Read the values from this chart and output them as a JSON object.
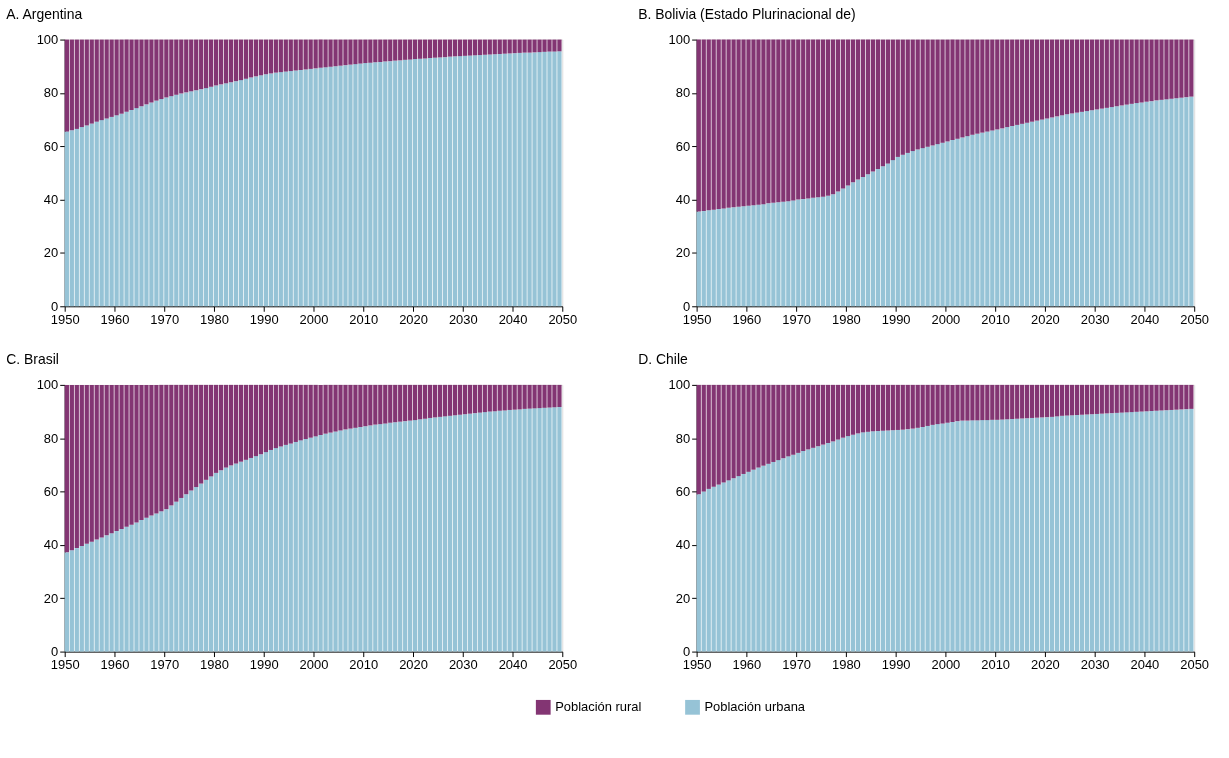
{
  "chart_data": [
    {
      "type": "bar",
      "stacked": true,
      "title": "A. Argentina",
      "legend": "bottom",
      "grid": false,
      "x": [
        1950,
        1951,
        1952,
        1953,
        1954,
        1955,
        1956,
        1957,
        1958,
        1959,
        1960,
        1961,
        1962,
        1963,
        1964,
        1965,
        1966,
        1967,
        1968,
        1969,
        1970,
        1971,
        1972,
        1973,
        1974,
        1975,
        1976,
        1977,
        1978,
        1979,
        1980,
        1981,
        1982,
        1983,
        1984,
        1985,
        1986,
        1987,
        1988,
        1989,
        1990,
        1991,
        1992,
        1993,
        1994,
        1995,
        1996,
        1997,
        1998,
        1999,
        2000,
        2001,
        2002,
        2003,
        2004,
        2005,
        2006,
        2007,
        2008,
        2009,
        2010,
        2011,
        2012,
        2013,
        2014,
        2015,
        2016,
        2017,
        2018,
        2019,
        2020,
        2021,
        2022,
        2023,
        2024,
        2025,
        2026,
        2027,
        2028,
        2029,
        2030,
        2031,
        2032,
        2033,
        2034,
        2035,
        2036,
        2037,
        2038,
        2039,
        2040,
        2041,
        2042,
        2043,
        2044,
        2045,
        2046,
        2047,
        2048,
        2049
      ],
      "xlim": [
        1950,
        2050
      ],
      "xticks": [
        1950,
        1960,
        1970,
        1980,
        1990,
        2000,
        2010,
        2020,
        2030,
        2040,
        2050
      ],
      "ylim": [
        0,
        100
      ],
      "yticks": [
        0,
        20,
        40,
        60,
        80,
        100
      ],
      "series": [
        {
          "name": "Población urbana",
          "color": "#96c3d6",
          "values": [
            65.5,
            66,
            66.5,
            67.2,
            67.8,
            68.5,
            69.2,
            69.8,
            70.4,
            71,
            71.6,
            72.2,
            72.9,
            73.6,
            74.3,
            75,
            75.7,
            76.4,
            77.1,
            77.7,
            78.3,
            78.8,
            79.3,
            79.8,
            80.2,
            80.6,
            81,
            81.4,
            81.8,
            82.3,
            82.8,
            83.2,
            83.6,
            84,
            84.4,
            84.8,
            85.3,
            85.8,
            86.2,
            86.6,
            87,
            87.3,
            87.6,
            87.8,
            88,
            88.2,
            88.4,
            88.6,
            88.8,
            89,
            89.2,
            89.4,
            89.6,
            89.8,
            90,
            90.2,
            90.4,
            90.6,
            90.8,
            91,
            91.2,
            91.3,
            91.5,
            91.6,
            91.8,
            91.9,
            92.1,
            92.2,
            92.4,
            92.5,
            92.7,
            92.8,
            92.9,
            93.1,
            93.2,
            93.3,
            93.4,
            93.6,
            93.7,
            93.8,
            93.9,
            94,
            94.1,
            94.2,
            94.3,
            94.4,
            94.5,
            94.6,
            94.7,
            94.8,
            94.9,
            95,
            95.1,
            95.1,
            95.2,
            95.3,
            95.4,
            95.5,
            95.5,
            95.6
          ]
        },
        {
          "name": "Población rural",
          "color": "#833573",
          "values": [
            34.5,
            34,
            33.5,
            32.8,
            32.2,
            31.5,
            30.8,
            30.2,
            29.6,
            29,
            28.4,
            27.8,
            27.1,
            26.4,
            25.7,
            25,
            24.3,
            23.6,
            22.9,
            22.3,
            21.7,
            21.2,
            20.7,
            20.2,
            19.8,
            19.4,
            19,
            18.6,
            18.2,
            17.7,
            17.2,
            16.8,
            16.4,
            16,
            15.6,
            15.2,
            14.7,
            14.2,
            13.8,
            13.4,
            13,
            12.7,
            12.4,
            12.2,
            12,
            11.8,
            11.6,
            11.4,
            11.2,
            11,
            10.8,
            10.6,
            10.4,
            10.2,
            10,
            9.8,
            9.6,
            9.4,
            9.2,
            9,
            8.8,
            8.7,
            8.5,
            8.4,
            8.2,
            8.1,
            7.9,
            7.8,
            7.6,
            7.5,
            7.3,
            7.2,
            7.1,
            6.9,
            6.8,
            6.7,
            6.6,
            6.4,
            6.3,
            6.2,
            6.1,
            6,
            5.9,
            5.8,
            5.7,
            5.6,
            5.5,
            5.4,
            5.3,
            5.2,
            5.1,
            5,
            4.9,
            4.9,
            4.8,
            4.7,
            4.6,
            4.5,
            4.5,
            4.4
          ]
        }
      ]
    },
    {
      "type": "bar",
      "stacked": true,
      "title": "B. Bolivia (Estado Plurinacional de)",
      "grid": false,
      "x": [
        1950,
        1951,
        1952,
        1953,
        1954,
        1955,
        1956,
        1957,
        1958,
        1959,
        1960,
        1961,
        1962,
        1963,
        1964,
        1965,
        1966,
        1967,
        1968,
        1969,
        1970,
        1971,
        1972,
        1973,
        1974,
        1975,
        1976,
        1977,
        1978,
        1979,
        1980,
        1981,
        1982,
        1983,
        1984,
        1985,
        1986,
        1987,
        1988,
        1989,
        1990,
        1991,
        1992,
        1993,
        1994,
        1995,
        1996,
        1997,
        1998,
        1999,
        2000,
        2001,
        2002,
        2003,
        2004,
        2005,
        2006,
        2007,
        2008,
        2009,
        2010,
        2011,
        2012,
        2013,
        2014,
        2015,
        2016,
        2017,
        2018,
        2019,
        2020,
        2021,
        2022,
        2023,
        2024,
        2025,
        2026,
        2027,
        2028,
        2029,
        2030,
        2031,
        2032,
        2033,
        2034,
        2035,
        2036,
        2037,
        2038,
        2039,
        2040,
        2041,
        2042,
        2043,
        2044,
        2045,
        2046,
        2047,
        2048,
        2049
      ],
      "xlim": [
        1950,
        2050
      ],
      "xticks": [
        1950,
        1960,
        1970,
        1980,
        1990,
        2000,
        2010,
        2020,
        2030,
        2040,
        2050
      ],
      "ylim": [
        0,
        100
      ],
      "yticks": [
        0,
        20,
        40,
        60,
        80,
        100
      ],
      "series": [
        {
          "color": "#96c3d6",
          "values": [
            35.5,
            35.7,
            36,
            36.2,
            36.5,
            36.7,
            36.9,
            37.1,
            37.3,
            37.5,
            37.7,
            37.9,
            38.1,
            38.3,
            38.6,
            38.8,
            39,
            39.2,
            39.4,
            39.7,
            40,
            40.2,
            40.4,
            40.7,
            40.9,
            41.1,
            41.4,
            42,
            43,
            44.2,
            45.3,
            46.5,
            47.5,
            48.5,
            49.5,
            50.5,
            51.5,
            52.5,
            53.5,
            54.8,
            56,
            56.8,
            57.5,
            58.2,
            58.8,
            59.3,
            59.8,
            60.3,
            60.8,
            61.3,
            61.8,
            62.3,
            62.8,
            63.3,
            63.8,
            64.3,
            64.7,
            65.1,
            65.5,
            65.9,
            66.3,
            66.7,
            67.2,
            67.6,
            68,
            68.4,
            68.8,
            69.2,
            69.6,
            70,
            70.4,
            70.8,
            71.2,
            71.6,
            72,
            72.3,
            72.6,
            72.9,
            73.2,
            73.5,
            73.8,
            74.1,
            74.4,
            74.7,
            75,
            75.3,
            75.6,
            75.9,
            76.2,
            76.4,
            76.7,
            76.9,
            77.2,
            77.4,
            77.6,
            77.8,
            78,
            78.2,
            78.4,
            78.6
          ]
        },
        {
          "color": "#833573",
          "values": [
            64.5,
            64.3,
            64,
            63.8,
            63.5,
            63.3,
            63.1,
            62.9,
            62.7,
            62.5,
            62.3,
            62.1,
            61.9,
            61.7,
            61.4,
            61.2,
            61,
            60.8,
            60.6,
            60.3,
            60,
            59.8,
            59.6,
            59.3,
            59.1,
            58.9,
            58.6,
            58,
            57,
            55.8,
            54.7,
            53.5,
            52.5,
            51.5,
            50.5,
            49.5,
            48.5,
            47.5,
            46.5,
            45.2,
            44,
            43.2,
            42.5,
            41.8,
            41.2,
            40.7,
            40.2,
            39.7,
            39.2,
            38.7,
            38.2,
            37.7,
            37.2,
            36.7,
            36.2,
            35.7,
            35.3,
            34.9,
            34.5,
            34.1,
            33.7,
            33.3,
            32.8,
            32.4,
            32,
            31.6,
            31.2,
            30.8,
            30.4,
            30,
            29.6,
            29.2,
            28.8,
            28.4,
            28,
            27.7,
            27.4,
            27.1,
            26.8,
            26.5,
            26.2,
            25.9,
            25.6,
            25.3,
            25,
            24.7,
            24.4,
            24.1,
            23.8,
            23.6,
            23.3,
            23.1,
            22.8,
            22.6,
            22.4,
            22.2,
            22,
            21.8,
            21.6,
            21.4
          ]
        }
      ]
    },
    {
      "type": "bar",
      "stacked": true,
      "title": "C. Brasil",
      "grid": false,
      "x": [
        1950,
        1951,
        1952,
        1953,
        1954,
        1955,
        1956,
        1957,
        1958,
        1959,
        1960,
        1961,
        1962,
        1963,
        1964,
        1965,
        1966,
        1967,
        1968,
        1969,
        1970,
        1971,
        1972,
        1973,
        1974,
        1975,
        1976,
        1977,
        1978,
        1979,
        1980,
        1981,
        1982,
        1983,
        1984,
        1985,
        1986,
        1987,
        1988,
        1989,
        1990,
        1991,
        1992,
        1993,
        1994,
        1995,
        1996,
        1997,
        1998,
        1999,
        2000,
        2001,
        2002,
        2003,
        2004,
        2005,
        2006,
        2007,
        2008,
        2009,
        2010,
        2011,
        2012,
        2013,
        2014,
        2015,
        2016,
        2017,
        2018,
        2019,
        2020,
        2021,
        2022,
        2023,
        2024,
        2025,
        2026,
        2027,
        2028,
        2029,
        2030,
        2031,
        2032,
        2033,
        2034,
        2035,
        2036,
        2037,
        2038,
        2039,
        2040,
        2041,
        2042,
        2043,
        2044,
        2045,
        2046,
        2047,
        2048,
        2049
      ],
      "xlim": [
        1950,
        2050
      ],
      "xticks": [
        1950,
        1960,
        1970,
        1980,
        1990,
        2000,
        2010,
        2020,
        2030,
        2040,
        2050
      ],
      "ylim": [
        0,
        100
      ],
      "yticks": [
        0,
        20,
        40,
        60,
        80,
        100
      ],
      "series": [
        {
          "color": "#96c3d6",
          "values": [
            37.2,
            38,
            38.8,
            39.6,
            40.4,
            41.2,
            42,
            42.8,
            43.6,
            44.4,
            45.2,
            46,
            46.8,
            47.6,
            48.4,
            49.3,
            50.2,
            51,
            51.8,
            52.6,
            53.4,
            54.8,
            56.2,
            57.6,
            59,
            60.4,
            61.7,
            63,
            64.4,
            65.7,
            67,
            68,
            69,
            69.8,
            70.5,
            71.2,
            71.9,
            72.6,
            73.3,
            74,
            74.8,
            75.6,
            76.3,
            76.9,
            77.5,
            78,
            78.6,
            79.2,
            79.7,
            80.2,
            80.7,
            81.2,
            81.7,
            82.1,
            82.5,
            82.9,
            83.3,
            83.6,
            83.9,
            84.2,
            84.5,
            84.8,
            85.1,
            85.3,
            85.5,
            85.8,
            86,
            86.2,
            86.4,
            86.6,
            86.8,
            87.1,
            87.3,
            87.6,
            87.8,
            88,
            88.2,
            88.4,
            88.6,
            88.8,
            89,
            89.2,
            89.4,
            89.6,
            89.8,
            90,
            90.1,
            90.3,
            90.4,
            90.6,
            90.7,
            90.8,
            91,
            91.1,
            91.2,
            91.3,
            91.4,
            91.5,
            91.6,
            91.7
          ]
        },
        {
          "color": "#833573",
          "values": [
            62.8,
            62,
            61.2,
            60.4,
            59.6,
            58.8,
            58,
            57.2,
            56.4,
            55.6,
            54.8,
            54,
            53.2,
            52.4,
            51.6,
            50.7,
            49.8,
            49,
            48.2,
            47.4,
            46.6,
            45.2,
            43.8,
            42.4,
            41,
            39.6,
            38.3,
            37,
            35.6,
            34.3,
            33,
            32,
            31,
            30.2,
            29.5,
            28.8,
            28.1,
            27.4,
            26.7,
            26,
            25.2,
            24.4,
            23.7,
            23.1,
            22.5,
            22,
            21.4,
            20.8,
            20.3,
            19.8,
            19.3,
            18.8,
            18.3,
            17.9,
            17.5,
            17.1,
            16.7,
            16.4,
            16.1,
            15.8,
            15.5,
            15.2,
            14.9,
            14.7,
            14.5,
            14.2,
            14,
            13.8,
            13.6,
            13.4,
            13.2,
            12.9,
            12.7,
            12.4,
            12.2,
            12,
            11.8,
            11.6,
            11.4,
            11.2,
            11,
            10.8,
            10.6,
            10.4,
            10.2,
            10,
            9.9,
            9.7,
            9.6,
            9.4,
            9.3,
            9.2,
            9,
            8.9,
            8.8,
            8.7,
            8.6,
            8.5,
            8.4,
            8.3
          ]
        }
      ]
    },
    {
      "type": "bar",
      "stacked": true,
      "title": "D. Chile",
      "grid": false,
      "x": [
        1950,
        1951,
        1952,
        1953,
        1954,
        1955,
        1956,
        1957,
        1958,
        1959,
        1960,
        1961,
        1962,
        1963,
        1964,
        1965,
        1966,
        1967,
        1968,
        1969,
        1970,
        1971,
        1972,
        1973,
        1974,
        1975,
        1976,
        1977,
        1978,
        1979,
        1980,
        1981,
        1982,
        1983,
        1984,
        1985,
        1986,
        1987,
        1988,
        1989,
        1990,
        1991,
        1992,
        1993,
        1994,
        1995,
        1996,
        1997,
        1998,
        1999,
        2000,
        2001,
        2002,
        2003,
        2004,
        2005,
        2006,
        2007,
        2008,
        2009,
        2010,
        2011,
        2012,
        2013,
        2014,
        2015,
        2016,
        2017,
        2018,
        2019,
        2020,
        2021,
        2022,
        2023,
        2024,
        2025,
        2026,
        2027,
        2028,
        2029,
        2030,
        2031,
        2032,
        2033,
        2034,
        2035,
        2036,
        2037,
        2038,
        2039,
        2040,
        2041,
        2042,
        2043,
        2044,
        2045,
        2046,
        2047,
        2048,
        2049
      ],
      "xlim": [
        1950,
        2050
      ],
      "xticks": [
        1950,
        1960,
        1970,
        1980,
        1990,
        2000,
        2010,
        2020,
        2030,
        2040,
        2050
      ],
      "ylim": [
        0,
        100
      ],
      "yticks": [
        0,
        20,
        40,
        60,
        80,
        100
      ],
      "series": [
        {
          "color": "#96c3d6",
          "values": [
            59,
            60,
            61,
            61.8,
            62.6,
            63.4,
            64.2,
            65,
            65.8,
            66.6,
            67.4,
            68.2,
            69,
            69.7,
            70.4,
            71.1,
            71.8,
            72.5,
            73.2,
            73.8,
            74.5,
            75.2,
            75.8,
            76.4,
            77,
            77.6,
            78.2,
            78.8,
            79.5,
            80.2,
            80.8,
            81.3,
            81.8,
            82.2,
            82.4,
            82.6,
            82.7,
            82.8,
            82.9,
            83,
            83.1,
            83.2,
            83.4,
            83.6,
            83.9,
            84.2,
            84.6,
            85,
            85.3,
            85.5,
            85.8,
            86.1,
            86.4,
            86.6,
            86.6,
            86.7,
            86.7,
            86.8,
            86.8,
            86.9,
            86.9,
            87,
            87.1,
            87.2,
            87.3,
            87.4,
            87.5,
            87.6,
            87.7,
            87.8,
            87.9,
            88,
            88.2,
            88.4,
            88.5,
            88.6,
            88.7,
            88.8,
            88.9,
            89,
            89.1,
            89.2,
            89.3,
            89.4,
            89.5,
            89.6,
            89.7,
            89.8,
            89.9,
            90,
            90.1,
            90.2,
            90.3,
            90.4,
            90.5,
            90.6,
            90.7,
            90.8,
            90.9,
            91
          ]
        },
        {
          "color": "#833573",
          "values": [
            41,
            40,
            39,
            38.2,
            37.4,
            36.6,
            35.8,
            35,
            34.2,
            33.4,
            32.6,
            31.8,
            31,
            30.3,
            29.6,
            28.9,
            28.2,
            27.5,
            26.8,
            26.2,
            25.5,
            24.8,
            24.2,
            23.6,
            23,
            22.4,
            21.8,
            21.2,
            20.5,
            19.8,
            19.2,
            18.7,
            18.2,
            17.8,
            17.6,
            17.4,
            17.3,
            17.2,
            17.1,
            17,
            16.9,
            16.8,
            16.6,
            16.4,
            16.1,
            15.8,
            15.4,
            15,
            14.7,
            14.5,
            14.2,
            13.9,
            13.6,
            13.4,
            13.4,
            13.3,
            13.3,
            13.2,
            13.2,
            13.1,
            13.1,
            13,
            12.9,
            12.8,
            12.7,
            12.6,
            12.5,
            12.4,
            12.3,
            12.2,
            12.1,
            12,
            11.8,
            11.6,
            11.5,
            11.4,
            11.3,
            11.2,
            11.1,
            11,
            10.9,
            10.8,
            10.7,
            10.6,
            10.5,
            10.4,
            10.3,
            10.2,
            10.1,
            10,
            9.9,
            9.8,
            9.7,
            9.6,
            9.5,
            9.4,
            9.3,
            9.2,
            9.1,
            9
          ]
        }
      ]
    }
  ]
}
